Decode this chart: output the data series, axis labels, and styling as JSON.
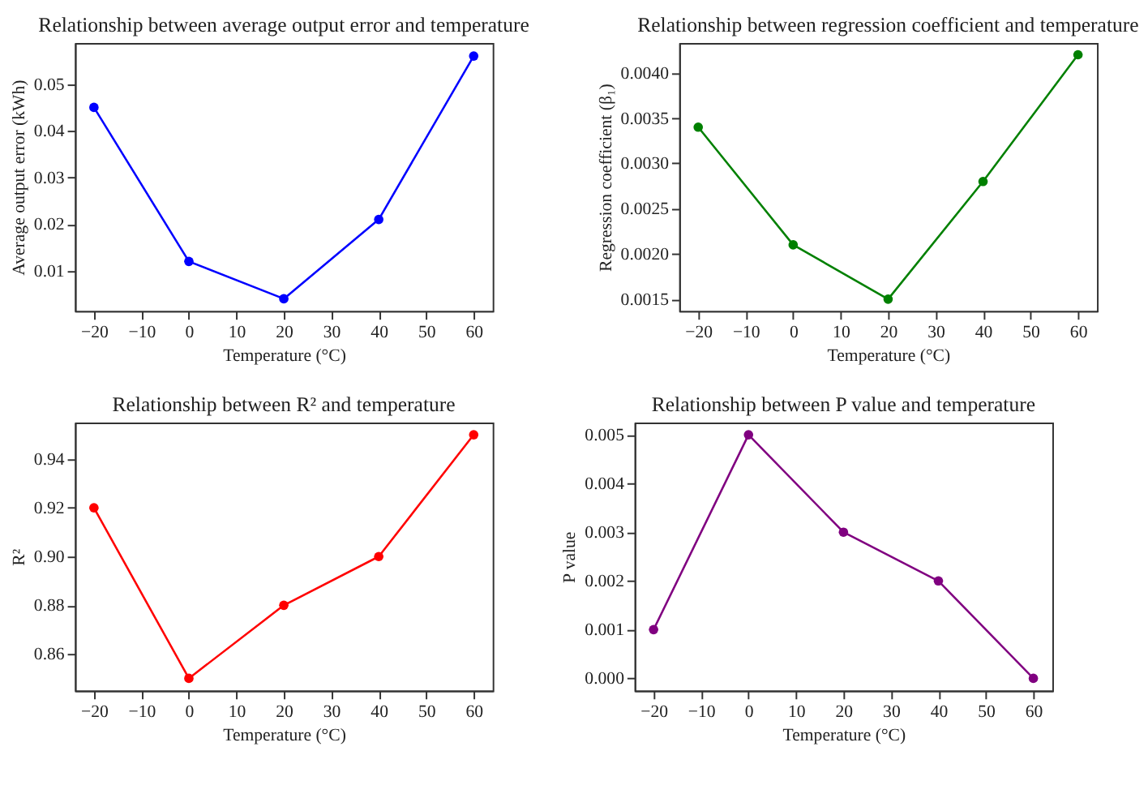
{
  "chart_data": [
    {
      "type": "line",
      "title": "Relationship between average output error and temperature",
      "xlabel": "Temperature (°C)",
      "ylabel": "Average output error (kWh)",
      "x": [
        -20,
        0,
        20,
        40,
        60
      ],
      "series": [
        {
          "color": "#0000ff",
          "values": [
            0.045,
            0.012,
            0.004,
            0.021,
            0.056
          ]
        }
      ],
      "xlim": [
        -24,
        64
      ],
      "xticks": [
        -20,
        -10,
        0,
        10,
        20,
        30,
        40,
        50,
        60
      ],
      "ylim": [
        0.0014,
        0.0588
      ],
      "yticks": [
        0.01,
        0.02,
        0.03,
        0.04,
        0.05
      ],
      "marker": "circle",
      "grid": false
    },
    {
      "type": "line",
      "title": "Relationship between regression coefficient and temperature",
      "xlabel": "Temperature (°C)",
      "ylabel": "Regression coefficient (β₁)",
      "x": [
        -20,
        0,
        20,
        40,
        60
      ],
      "series": [
        {
          "color": "#008000",
          "values": [
            0.0034,
            0.0021,
            0.0015,
            0.0028,
            0.0042
          ]
        }
      ],
      "xlim": [
        -24,
        64
      ],
      "xticks": [
        -20,
        -10,
        0,
        10,
        20,
        30,
        40,
        50,
        60
      ],
      "ylim": [
        0.00137,
        0.00433
      ],
      "yticks": [
        0.0015,
        {
          "value": 0.002,
          "label": "0.0020"
        },
        0.0025,
        {
          "value": 0.003,
          "label": "0.0030"
        },
        0.0035,
        {
          "value": 0.004,
          "label": "0.0040"
        }
      ],
      "marker": "circle",
      "grid": false
    },
    {
      "type": "line",
      "title": "Relationship between R² and temperature",
      "xlabel": "Temperature (°C)",
      "ylabel": "R²",
      "x": [
        -20,
        0,
        20,
        40,
        60
      ],
      "series": [
        {
          "color": "#ff0000",
          "values": [
            0.92,
            0.85,
            0.88,
            0.9,
            0.95
          ]
        }
      ],
      "xlim": [
        -24,
        64
      ],
      "xticks": [
        -20,
        -10,
        0,
        10,
        20,
        30,
        40,
        50,
        60
      ],
      "ylim": [
        0.845,
        0.955
      ],
      "yticks": [
        0.86,
        0.88,
        {
          "value": 0.9,
          "label": "0.90"
        },
        0.92,
        0.94
      ],
      "marker": "circle",
      "grid": false
    },
    {
      "type": "line",
      "title": "Relationship between P value and temperature",
      "xlabel": "Temperature (°C)",
      "ylabel": "P value",
      "x": [
        -20,
        0,
        20,
        40,
        60
      ],
      "series": [
        {
          "color": "#800080",
          "values": [
            0.001,
            0.005,
            0.003,
            0.002,
            0.0
          ]
        }
      ],
      "xlim": [
        -24,
        64
      ],
      "xticks": [
        -20,
        -10,
        0,
        10,
        20,
        30,
        40,
        50,
        60
      ],
      "ylim": [
        -0.00025,
        0.00525
      ],
      "yticks": [
        {
          "value": 0,
          "label": "0.000"
        },
        0.001,
        0.002,
        0.003,
        0.004,
        0.005
      ],
      "marker": "circle",
      "grid": false
    }
  ]
}
